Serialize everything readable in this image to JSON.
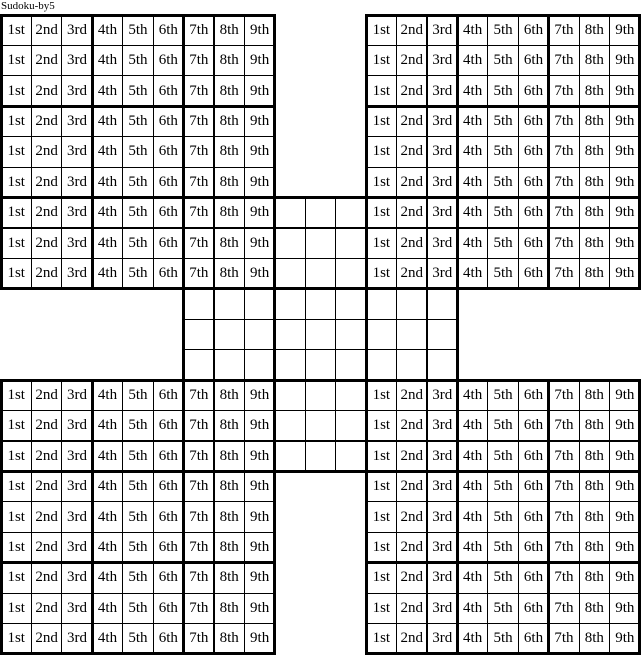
{
  "title": "Sudoku-by5",
  "column_labels": [
    "1st",
    "2nd",
    "3rd",
    "4th",
    "5th",
    "6th",
    "7th",
    "8th",
    "9th"
  ],
  "puzzle_type": "samurai (five overlapping 9x9 grids)",
  "grid_color": "#000000",
  "background_color": "#ffffff"
}
